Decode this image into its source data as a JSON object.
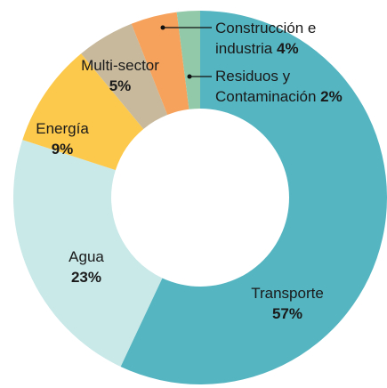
{
  "chart_data": {
    "type": "donut",
    "categories": [
      "Transporte",
      "Agua",
      "Energía",
      "Multi-sector",
      "Construcción e industria",
      "Residuos y Contaminación"
    ],
    "values": [
      57,
      23,
      9,
      5,
      4,
      2
    ],
    "value_labels": [
      "57%",
      "23%",
      "9%",
      "5%",
      "4%",
      "2%"
    ],
    "colors": [
      "#55b5c1",
      "#c9e8e8",
      "#fdc94c",
      "#c8b99d",
      "#f6a25c",
      "#92c9a9"
    ]
  }
}
